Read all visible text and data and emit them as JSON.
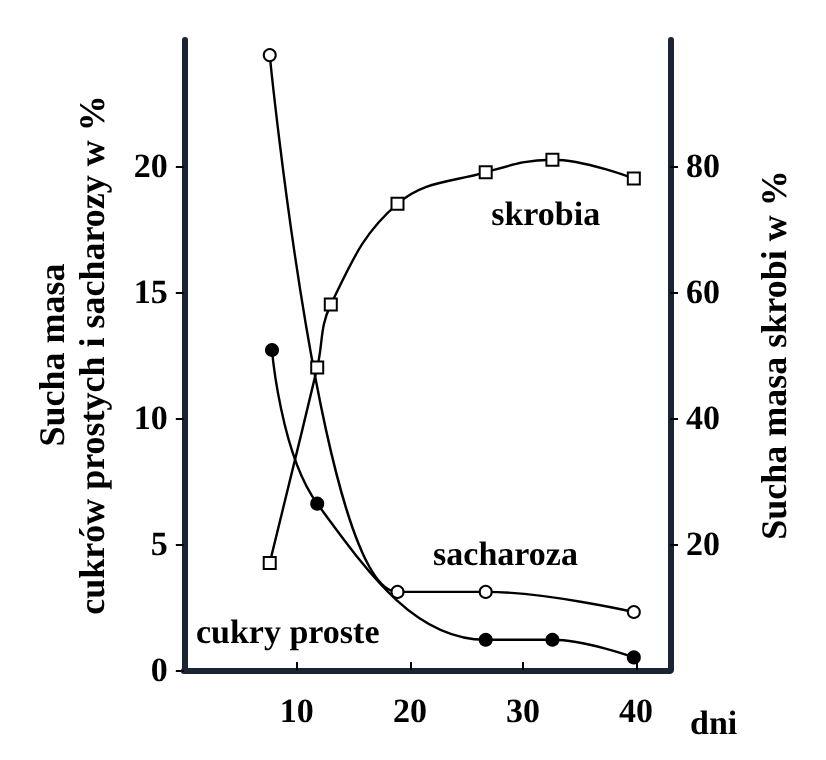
{
  "chart_data": {
    "type": "line",
    "xlabel": "dni",
    "ylabel": "Sucha masa\ncukrów prostych i sacharozy w %",
    "y2label": "Sucha masa skrobi w %",
    "xlim": [
      0,
      43
    ],
    "xticks": [
      10,
      20,
      30,
      40
    ],
    "ylim": [
      0,
      25
    ],
    "yticks": [
      0,
      5,
      10,
      15,
      20
    ],
    "y2lim": [
      0,
      100
    ],
    "y2ticks": [
      20,
      40,
      60,
      80
    ],
    "grid": false,
    "legend": false,
    "line_style": "solid",
    "series": [
      {
        "name": "sacharoza",
        "color": "#000000",
        "marker": "circle",
        "x": [
          7.6,
          18.9,
          26.7,
          39.8
        ],
        "values": [
          24.4,
          3.1,
          3.1,
          2.3
        ]
      },
      {
        "name": "skrobia",
        "color": "#000000",
        "marker": "square",
        "axis": "y2",
        "x": [
          7.6,
          11.8,
          13.0,
          18.9,
          26.7,
          32.6,
          39.8
        ],
        "values": [
          17,
          48,
          58,
          74,
          79,
          81,
          78
        ]
      },
      {
        "name": "cukry proste",
        "color": "#000000",
        "marker": "circle",
        "x": [
          7.8,
          11.8,
          26.7,
          32.6,
          39.8
        ],
        "values": [
          12.7,
          6.6,
          1.2,
          1.2,
          0.5
        ]
      }
    ]
  }
}
